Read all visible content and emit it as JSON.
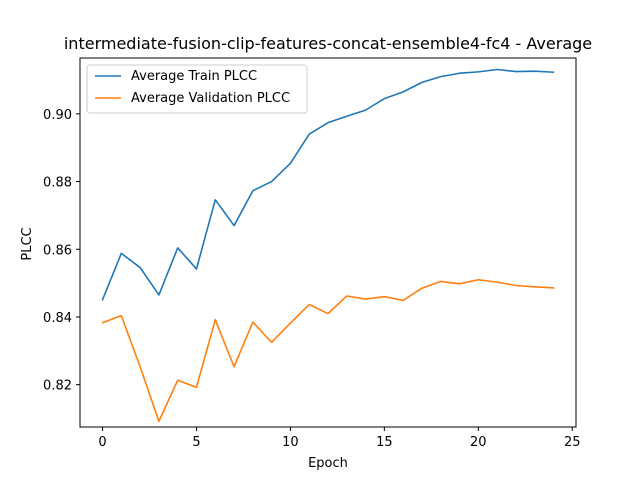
{
  "chart_data": {
    "type": "line",
    "title": "intermediate-fusion-clip-features-concat-ensemble4-fc4 - Average",
    "xlabel": "Epoch",
    "ylabel": "PLCC",
    "xlim": [
      -1.2,
      25.2
    ],
    "ylim": [
      0.8075,
      0.9165
    ],
    "xticks": [
      0,
      5,
      10,
      15,
      20,
      25
    ],
    "yticks": [
      0.82,
      0.84,
      0.86,
      0.88,
      0.9
    ],
    "ytick_labels": [
      "0.82",
      "0.84",
      "0.86",
      "0.88",
      "0.90"
    ],
    "grid": false,
    "legend_position": "upper-left",
    "x": [
      0,
      1,
      2,
      3,
      4,
      5,
      6,
      7,
      8,
      9,
      10,
      11,
      12,
      13,
      14,
      15,
      16,
      17,
      18,
      19,
      20,
      21,
      22,
      23,
      24
    ],
    "series": [
      {
        "name": "Average Train PLCC",
        "color": "#1f77b4",
        "values": [
          0.8451,
          0.8588,
          0.8546,
          0.8465,
          0.8604,
          0.8542,
          0.8746,
          0.867,
          0.8773,
          0.88,
          0.8854,
          0.894,
          0.8974,
          0.8993,
          0.9011,
          0.9045,
          0.9065,
          0.9093,
          0.911,
          0.912,
          0.9124,
          0.9131,
          0.9125,
          0.9126,
          0.9123
        ]
      },
      {
        "name": "Average Validation PLCC",
        "color": "#ff7f0e",
        "values": [
          0.8383,
          0.8404,
          0.8253,
          0.8092,
          0.8213,
          0.8192,
          0.8392,
          0.8253,
          0.8385,
          0.8325,
          0.8382,
          0.8437,
          0.841,
          0.8462,
          0.8453,
          0.846,
          0.8449,
          0.8485,
          0.8505,
          0.8498,
          0.851,
          0.8503,
          0.8493,
          0.8489,
          0.8486
        ]
      }
    ]
  }
}
